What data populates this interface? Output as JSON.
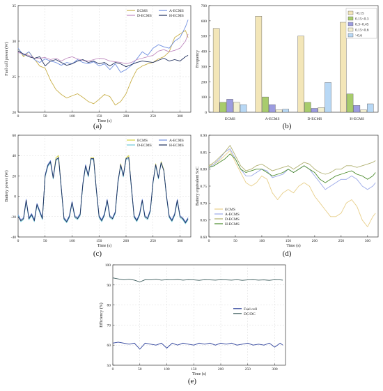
{
  "chart_data": [
    {
      "id": "a",
      "type": "line",
      "panel_label": "(a)",
      "xlabel": "Time (s)",
      "ylabel": "Fuel cell power (W)",
      "xlim": [
        0,
        320
      ],
      "ylim": [
        20,
        35
      ],
      "xticks": [
        0,
        50,
        100,
        150,
        200,
        250,
        300
      ],
      "yticks": [
        20,
        25,
        30,
        35
      ],
      "grid": true,
      "legend_position": "top-right",
      "x": [
        0,
        10,
        20,
        30,
        40,
        50,
        60,
        70,
        80,
        90,
        100,
        110,
        120,
        130,
        140,
        150,
        160,
        170,
        180,
        190,
        200,
        210,
        220,
        230,
        240,
        250,
        260,
        270,
        280,
        290,
        300,
        310,
        315
      ],
      "series": [
        {
          "name": "ECMS",
          "color": "#c9b04a",
          "values": [
            29,
            27.8,
            28.5,
            27.5,
            26.5,
            26.2,
            24.5,
            23.2,
            22.5,
            22,
            22.3,
            22.6,
            22.1,
            21.5,
            21.2,
            21.8,
            22.5,
            22.2,
            21,
            21.5,
            22.6,
            24.5,
            26,
            26.5,
            26.8,
            27,
            27.5,
            27.8,
            28.5,
            30.5,
            31,
            31.5,
            30.5
          ]
        },
        {
          "name": "A-ECMS",
          "color": "#6e8ee0",
          "values": [
            29,
            28,
            28.5,
            27.4,
            27,
            27.5,
            27.2,
            27,
            26.6,
            27,
            26.8,
            27.4,
            27,
            26.8,
            27.1,
            26.5,
            26.8,
            26,
            26.8,
            25.6,
            26,
            26.6,
            27.5,
            28.5,
            28,
            29,
            29.5,
            29.2,
            29,
            30,
            30.5,
            32,
            33
          ]
        },
        {
          "name": "D-ECMS",
          "color": "#c08cc0",
          "values": [
            28.4,
            28.2,
            28,
            27.6,
            27.6,
            27.7,
            27.4,
            27.6,
            27.2,
            27.6,
            27.8,
            27.5,
            27.3,
            27.2,
            27.4,
            27.6,
            27.5,
            27.2,
            27.1,
            27,
            26.8,
            27,
            27.4,
            27.6,
            27.8,
            28,
            28.6,
            28.8,
            28.5,
            28.7,
            29,
            30,
            31
          ]
        },
        {
          "name": "H-ECMS",
          "color": "#1f2e5c",
          "values": [
            28.6,
            28.2,
            27.8,
            27.6,
            27.8,
            26.5,
            27.2,
            27.4,
            27,
            26.6,
            26.8,
            27.2,
            27.4,
            27,
            27.2,
            26.8,
            27,
            26.5,
            27,
            26.8,
            26.4,
            26.7,
            27,
            27.2,
            27.1,
            27,
            27.3,
            27.6,
            27.2,
            27.4,
            27.2,
            27.8,
            28
          ]
        }
      ]
    },
    {
      "id": "b",
      "type": "bar",
      "panel_label": "(b)",
      "ylabel": "Frequency",
      "ylim": [
        0,
        700
      ],
      "yticks": [
        0,
        100,
        200,
        300,
        400,
        500,
        600,
        700
      ],
      "grid": false,
      "legend_position": "top-right",
      "categories": [
        "ECMS",
        "A-ECMS",
        "D-ECMS",
        "H-ECMS"
      ],
      "series": [
        {
          "name": "<0.15",
          "color": "#f3e6b8",
          "values": [
            550,
            630,
            500,
            590
          ]
        },
        {
          "name": "0.15~0.3",
          "color": "#a8cc6c",
          "values": [
            65,
            100,
            65,
            120
          ]
        },
        {
          "name": "0.3~0.45",
          "color": "#9c9ce0",
          "values": [
            85,
            50,
            25,
            45
          ]
        },
        {
          "name": "0.15~0.6",
          "color": "#f3f0d0",
          "values": [
            65,
            15,
            30,
            15
          ]
        },
        {
          "name": ">0.6",
          "color": "#b8d8f5",
          "values": [
            50,
            20,
            195,
            55
          ]
        }
      ]
    },
    {
      "id": "c",
      "type": "line",
      "panel_label": "(c)",
      "xlabel": "Time (s)",
      "ylabel": "Battery power (W)",
      "xlim": [
        0,
        320
      ],
      "ylim": [
        -40,
        60
      ],
      "xticks": [
        0,
        50,
        100,
        150,
        200,
        250,
        300
      ],
      "yticks": [
        -40,
        -20,
        0,
        20,
        40,
        60
      ],
      "grid": true,
      "legend_position": "top-right",
      "x": [
        0,
        5,
        10,
        15,
        20,
        25,
        30,
        35,
        40,
        45,
        50,
        55,
        60,
        65,
        70,
        75,
        80,
        85,
        90,
        95,
        100,
        105,
        110,
        115,
        120,
        125,
        130,
        135,
        140,
        145,
        150,
        155,
        160,
        165,
        170,
        175,
        180,
        185,
        190,
        195,
        200,
        205,
        210,
        215,
        220,
        225,
        230,
        235,
        240,
        245,
        250,
        255,
        260,
        265,
        270,
        275,
        280,
        285,
        290,
        295,
        300,
        305,
        310,
        315
      ],
      "series": [
        {
          "name": "ECMS",
          "color": "#d4d440",
          "values": [
            -19,
            -24,
            -22,
            -4,
            -22,
            -18,
            -24,
            -8,
            -15,
            -22,
            20,
            30,
            34,
            18,
            38,
            40,
            8,
            -22,
            -25,
            -20,
            -6,
            -20,
            -22,
            -18,
            12,
            30,
            20,
            38,
            38,
            6,
            -20,
            -24,
            -18,
            -4,
            -20,
            -22,
            -16,
            14,
            32,
            20,
            38,
            40,
            8,
            -20,
            -24,
            -18,
            -4,
            -20,
            -22,
            -14,
            14,
            32,
            18,
            34,
            26,
            0,
            -20,
            -24,
            -18,
            -4,
            -20,
            -22,
            -26,
            -22
          ]
        },
        {
          "name": "A-ECMS",
          "color": "#6e8ee0",
          "values": [
            -18,
            -23,
            -21,
            -3,
            -21,
            -17,
            -23,
            -7,
            -14,
            -21,
            21,
            31,
            35,
            19,
            36,
            38,
            9,
            -21,
            -24,
            -19,
            -5,
            -19,
            -21,
            -17,
            13,
            31,
            21,
            37,
            36,
            7,
            -19,
            -23,
            -17,
            -3,
            -19,
            -21,
            -15,
            15,
            31,
            21,
            37,
            38,
            9,
            -19,
            -23,
            -17,
            -3,
            -19,
            -21,
            -13,
            15,
            31,
            19,
            33,
            25,
            1,
            -19,
            -23,
            -17,
            -3,
            -19,
            -21,
            -25,
            -21
          ]
        },
        {
          "name": "D-ECMS",
          "color": "#6ec8d8",
          "values": [
            -19,
            -25,
            -23,
            -5,
            -23,
            -19,
            -25,
            -9,
            -16,
            -23,
            19,
            29,
            33,
            17,
            35,
            37,
            7,
            -23,
            -26,
            -21,
            -7,
            -21,
            -23,
            -19,
            11,
            29,
            19,
            36,
            36,
            5,
            -21,
            -25,
            -19,
            -5,
            -21,
            -23,
            -17,
            13,
            30,
            19,
            36,
            37,
            7,
            -21,
            -25,
            -19,
            -5,
            -21,
            -23,
            -15,
            13,
            30,
            17,
            33,
            25,
            -1,
            -21,
            -25,
            -19,
            -5,
            -21,
            -23,
            -27,
            -23
          ]
        },
        {
          "name": "H-ECMS",
          "color": "#1f2e5c",
          "values": [
            -20,
            -24,
            -22,
            -4,
            -22,
            -18,
            -24,
            -8,
            -15,
            -22,
            20,
            30,
            34,
            18,
            36,
            38,
            8,
            -22,
            -25,
            -20,
            -6,
            -20,
            -22,
            -18,
            12,
            30,
            20,
            37,
            37,
            6,
            -20,
            -24,
            -18,
            -4,
            -20,
            -22,
            -16,
            14,
            31,
            20,
            37,
            38,
            8,
            -20,
            -24,
            -18,
            -4,
            -20,
            -22,
            -14,
            14,
            31,
            18,
            33,
            25,
            0,
            -20,
            -24,
            -18,
            -4,
            -20,
            -22,
            -26,
            -22
          ]
        }
      ]
    },
    {
      "id": "d",
      "type": "line",
      "panel_label": "(d)",
      "xlabel": "Time (s)",
      "ylabel": "Battery equivalent SoC",
      "xlim": [
        0,
        320
      ],
      "ylim": [
        0.6,
        0.9
      ],
      "xticks": [
        0,
        50,
        100,
        150,
        200,
        250,
        300
      ],
      "yticks": [
        0.6,
        0.65,
        0.7,
        0.75,
        0.8,
        0.85,
        0.9
      ],
      "ytick_labels": [
        "0.60",
        "0.65",
        "0.70",
        "0.75",
        "0.80",
        "0.85",
        "0.90"
      ],
      "grid": false,
      "legend_position": "bottom-left",
      "x": [
        0,
        10,
        20,
        30,
        40,
        50,
        60,
        70,
        80,
        90,
        100,
        110,
        120,
        130,
        140,
        150,
        160,
        170,
        180,
        190,
        200,
        210,
        220,
        230,
        240,
        250,
        260,
        270,
        280,
        290,
        300,
        310,
        315
      ],
      "series": [
        {
          "name": "ECMS",
          "color": "#e8cf8a",
          "values": [
            0.81,
            0.815,
            0.825,
            0.84,
            0.855,
            0.82,
            0.79,
            0.76,
            0.75,
            0.76,
            0.78,
            0.77,
            0.73,
            0.71,
            0.73,
            0.74,
            0.73,
            0.75,
            0.76,
            0.75,
            0.72,
            0.7,
            0.68,
            0.66,
            0.66,
            0.67,
            0.7,
            0.71,
            0.69,
            0.65,
            0.63,
            0.66,
            0.67
          ]
        },
        {
          "name": "A-ECMS",
          "color": "#9aa8e8",
          "values": [
            0.805,
            0.815,
            0.83,
            0.85,
            0.86,
            0.83,
            0.8,
            0.78,
            0.78,
            0.79,
            0.8,
            0.795,
            0.775,
            0.78,
            0.785,
            0.8,
            0.79,
            0.8,
            0.81,
            0.8,
            0.78,
            0.76,
            0.74,
            0.75,
            0.76,
            0.77,
            0.77,
            0.78,
            0.77,
            0.75,
            0.74,
            0.75,
            0.76
          ]
        },
        {
          "name": "D-ECMS",
          "color": "#b0b070",
          "values": [
            0.81,
            0.82,
            0.835,
            0.85,
            0.87,
            0.84,
            0.81,
            0.795,
            0.8,
            0.81,
            0.815,
            0.805,
            0.795,
            0.8,
            0.805,
            0.81,
            0.8,
            0.81,
            0.82,
            0.815,
            0.8,
            0.79,
            0.785,
            0.79,
            0.8,
            0.8,
            0.81,
            0.81,
            0.805,
            0.81,
            0.815,
            0.82,
            0.825
          ]
        },
        {
          "name": "H-ECMS",
          "color": "#4a8a2a",
          "values": [
            0.805,
            0.81,
            0.82,
            0.83,
            0.845,
            0.83,
            0.8,
            0.79,
            0.795,
            0.8,
            0.8,
            0.79,
            0.78,
            0.785,
            0.79,
            0.8,
            0.79,
            0.8,
            0.81,
            0.8,
            0.79,
            0.77,
            0.76,
            0.77,
            0.78,
            0.785,
            0.79,
            0.795,
            0.785,
            0.78,
            0.77,
            0.78,
            0.79
          ]
        }
      ]
    },
    {
      "id": "e",
      "type": "line",
      "panel_label": "(e)",
      "xlabel": "Time (s)",
      "ylabel": "Efficiency (%)",
      "xlim": [
        0,
        320
      ],
      "ylim": [
        50,
        100
      ],
      "xticks": [
        0,
        50,
        100,
        150,
        200,
        250,
        300
      ],
      "yticks": [
        50,
        60,
        70,
        80,
        90,
        100
      ],
      "grid": true,
      "legend_position": "center-right",
      "x": [
        0,
        10,
        20,
        30,
        40,
        50,
        60,
        70,
        80,
        90,
        100,
        110,
        120,
        130,
        140,
        150,
        160,
        170,
        180,
        190,
        200,
        210,
        220,
        230,
        240,
        250,
        260,
        270,
        280,
        290,
        300,
        310,
        315
      ],
      "series": [
        {
          "name": "Fuel cell",
          "color": "#2b3f9a",
          "values": [
            61,
            61.5,
            61,
            60.5,
            61,
            58,
            61,
            60.5,
            60,
            61,
            58.5,
            61,
            60,
            61,
            60.5,
            60,
            61,
            60.5,
            61,
            60,
            61,
            60.5,
            61,
            60,
            60.5,
            61,
            60,
            60.5,
            60,
            61,
            59,
            61,
            60
          ]
        },
        {
          "name": "DC/DC",
          "color": "#3a5a5a",
          "values": [
            93.5,
            93,
            92.5,
            92.8,
            92.4,
            91.5,
            92.6,
            92.5,
            92.8,
            92.4,
            92.6,
            92.5,
            92.7,
            92.4,
            92.6,
            92.5,
            92.3,
            92.6,
            92.5,
            92.4,
            92.6,
            92.5,
            92.4,
            92.6,
            92.3,
            92.5,
            92.6,
            92.4,
            92.5,
            92.3,
            92.6,
            92.5,
            92.4
          ]
        }
      ]
    }
  ]
}
